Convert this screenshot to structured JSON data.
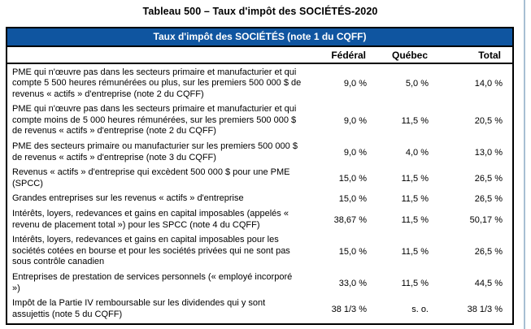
{
  "page_title": "Tableau 500 – Taux d'impôt des SOCIÉTÉS-2020",
  "table": {
    "banner": "Taux d'impôt des SOCIÉTÉS (note 1 du CQFF)",
    "columns": {
      "federal": "Fédéral",
      "quebec": "Québec",
      "total": "Total"
    },
    "rows": [
      {
        "label": "PME qui n'œuvre pas dans les secteurs primaire et manufacturier et qui compte 5 500 heures rémunérées ou plus, sur les premiers 500 000 $ de revenus « actifs » d'entreprise (note 2 du CQFF)",
        "federal": "9,0 %",
        "quebec": "5,0 %",
        "total": "14,0 %"
      },
      {
        "label": "PME qui n'œuvre pas dans les secteurs primaire et manufacturier et qui compte moins de 5 000 heures rémunérées, sur les premiers 500 000 $ de revenus « actifs » d'entreprise (note 2 du CQFF)",
        "federal": "9,0 %",
        "quebec": "11,5 %",
        "total": "20,5 %"
      },
      {
        "label": "PME des secteurs primaire ou manufacturier sur les premiers 500 000 $ de revenus « actifs » d'entreprise (note 3 du CQFF)",
        "federal": "9,0 %",
        "quebec": "4,0 %",
        "total": "13,0 %"
      },
      {
        "label": "Revenus « actifs » d'entreprise qui excèdent 500 000 $ pour une PME (SPCC)",
        "federal": "15,0 %",
        "quebec": "11,5 %",
        "total": "26,5 %"
      },
      {
        "label": "Grandes entreprises sur les revenus « actifs » d'entreprise",
        "federal": "15,0 %",
        "quebec": "11,5 %",
        "total": "26,5 %"
      },
      {
        "label": "Intérêts, loyers, redevances et gains en capital imposables (appelés « revenu de placement total ») pour les SPCC (note 4 du CQFF)",
        "federal": "38,67 %",
        "quebec": "11,5 %",
        "total": "50,17 %"
      },
      {
        "label": "Intérêts, loyers, redevances et gains en capital imposables pour les sociétés cotées en bourse et pour les sociétés privées qui ne sont pas sous contrôle canadien",
        "federal": "15,0 %",
        "quebec": "11,5 %",
        "total": "26,5 %"
      },
      {
        "label": "Entreprises de prestation de services personnels (« employé incorporé »)",
        "federal": "33,0 %",
        "quebec": "11,5 %",
        "total": "44,5 %"
      },
      {
        "label": "Impôt de la Partie IV remboursable sur les dividendes qui y sont assujettis (note 5 du CQFF)",
        "federal": "38 1/3 %",
        "quebec": "s. o.",
        "total": "38 1/3 %"
      }
    ]
  },
  "colors": {
    "banner_bg": "#0f55a0",
    "banner_text": "#ffffff",
    "border": "#000000",
    "page_edge_line": "#a7bfd3"
  }
}
